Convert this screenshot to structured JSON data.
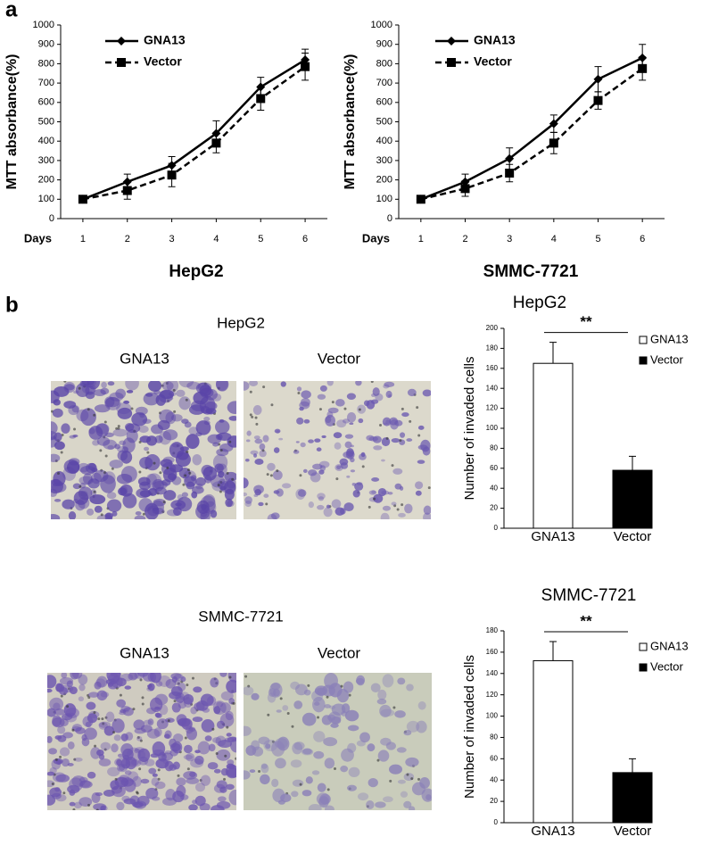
{
  "panel_labels": [
    "a",
    "b"
  ],
  "image_groups": [
    {
      "title": "HepG2",
      "captions": [
        "GNA13",
        "Vector"
      ]
    },
    {
      "title": "SMMC-7721",
      "captions": [
        "GNA13",
        "Vector"
      ]
    }
  ],
  "chart_data": [
    {
      "type": "line",
      "title": "HepG2",
      "y_label": "MTT absorbance(%)",
      "x_label": "Days",
      "x": [
        1,
        2,
        3,
        4,
        5,
        6
      ],
      "xlim": [
        0.5,
        6.5
      ],
      "xticks": [
        1,
        2,
        3,
        4,
        5,
        6
      ],
      "ylim": [
        0,
        1000
      ],
      "yticks": [
        0,
        100,
        200,
        300,
        400,
        500,
        600,
        700,
        800,
        900,
        1000
      ],
      "series": [
        {
          "name": "GNA13",
          "color": "#000000",
          "marker": "diamond",
          "dashed": false,
          "values": [
            100,
            190,
            275,
            440,
            680,
            820
          ],
          "errors": [
            0,
            40,
            45,
            65,
            50,
            55
          ]
        },
        {
          "name": "Vector",
          "color": "#000000",
          "marker": "square",
          "dashed": true,
          "values": [
            100,
            145,
            225,
            390,
            620,
            785
          ],
          "errors": [
            0,
            45,
            60,
            50,
            60,
            70
          ]
        }
      ]
    },
    {
      "type": "line",
      "title": "SMMC-7721",
      "y_label": "MTT absorbance(%)",
      "x_label": "Days",
      "x": [
        1,
        2,
        3,
        4,
        5,
        6
      ],
      "xlim": [
        0.5,
        6.5
      ],
      "xticks": [
        1,
        2,
        3,
        4,
        5,
        6
      ],
      "ylim": [
        0,
        1000
      ],
      "yticks": [
        0,
        100,
        200,
        300,
        400,
        500,
        600,
        700,
        800,
        900,
        1000
      ],
      "series": [
        {
          "name": "GNA13",
          "color": "#000000",
          "marker": "diamond",
          "dashed": false,
          "values": [
            100,
            190,
            310,
            490,
            720,
            830
          ],
          "errors": [
            0,
            40,
            55,
            45,
            65,
            70
          ]
        },
        {
          "name": "Vector",
          "color": "#000000",
          "marker": "square",
          "dashed": true,
          "values": [
            100,
            155,
            235,
            390,
            610,
            775
          ],
          "errors": [
            0,
            40,
            45,
            55,
            45,
            60
          ]
        }
      ]
    },
    {
      "type": "bar",
      "title": "HepG2",
      "y_label": "Number of invaded cells",
      "annotation": "**",
      "categories": [
        "GNA13",
        "Vector"
      ],
      "values": [
        165,
        58
      ],
      "errors": [
        21,
        14
      ],
      "colors": [
        "#ffffff",
        "#000000"
      ],
      "ylim": [
        0,
        200
      ],
      "yticks": [
        0,
        20,
        40,
        60,
        80,
        100,
        120,
        140,
        160,
        180,
        200
      ]
    },
    {
      "type": "bar",
      "title": "SMMC-7721",
      "y_label": "Number of invaded cells",
      "annotation": "**",
      "categories": [
        "GNA13",
        "Vector"
      ],
      "values": [
        152,
        47
      ],
      "errors": [
        18,
        13
      ],
      "colors": [
        "#ffffff",
        "#000000"
      ],
      "ylim": [
        0,
        180
      ],
      "yticks": [
        0,
        20,
        40,
        60,
        80,
        100,
        120,
        140,
        160,
        180
      ]
    }
  ]
}
